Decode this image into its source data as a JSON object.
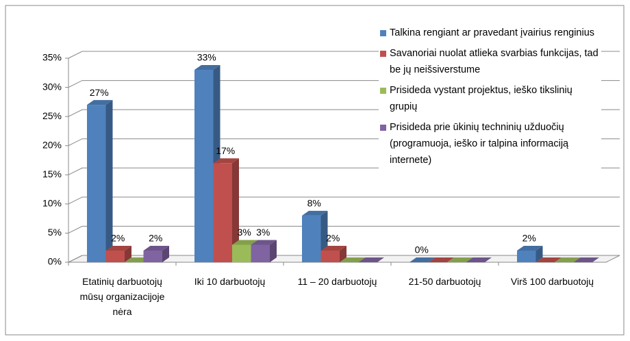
{
  "chart_data": {
    "type": "bar3d",
    "categories": [
      "Etatinių darbuotojų mūsų organizacijoje nėra",
      "Iki 10 darbuotojų",
      "11 – 20 darbuotojų",
      "21-50 darbuotojų",
      "Virš 100 darbuotojų"
    ],
    "series": [
      {
        "name": "Talkina rengiant ar pravedant įvairius renginius",
        "color": "#4f81bd",
        "values": [
          27,
          33,
          8,
          0,
          2
        ],
        "value_labels": [
          "27%",
          "33%",
          "8%",
          "0%",
          "2%"
        ]
      },
      {
        "name": "Savanoriai nuolat atlieka svarbias funkcijas, tad be jų neišsiverstume",
        "color": "#c0504d",
        "values": [
          2,
          17,
          2,
          0,
          0
        ],
        "value_labels": [
          "2%",
          "17%",
          "2%",
          null,
          null
        ]
      },
      {
        "name": "Prisideda vystant projektus, ieško tikslinių grupių",
        "color": "#9bbb59",
        "values": [
          0,
          3,
          0,
          0,
          0
        ],
        "value_labels": [
          null,
          "3%",
          null,
          null,
          null
        ]
      },
      {
        "name": "Prisideda prie ūkinių techninių užduočių (programuoja, ieško ir talpina informaciją internete)",
        "color": "#8064a2",
        "values": [
          2,
          3,
          0,
          0,
          0
        ],
        "value_labels": [
          "2%",
          "3%",
          null,
          null,
          null
        ]
      }
    ],
    "ylim": [
      0,
      35
    ],
    "yticks": [
      {
        "value": 0,
        "label": "0%"
      },
      {
        "value": 5,
        "label": "5%"
      },
      {
        "value": 10,
        "label": "10%"
      },
      {
        "value": 15,
        "label": "15%"
      },
      {
        "value": 20,
        "label": "20%"
      },
      {
        "value": 25,
        "label": "25%"
      },
      {
        "value": 30,
        "label": "30%"
      },
      {
        "value": 35,
        "label": "35%"
      }
    ],
    "grid": true
  }
}
